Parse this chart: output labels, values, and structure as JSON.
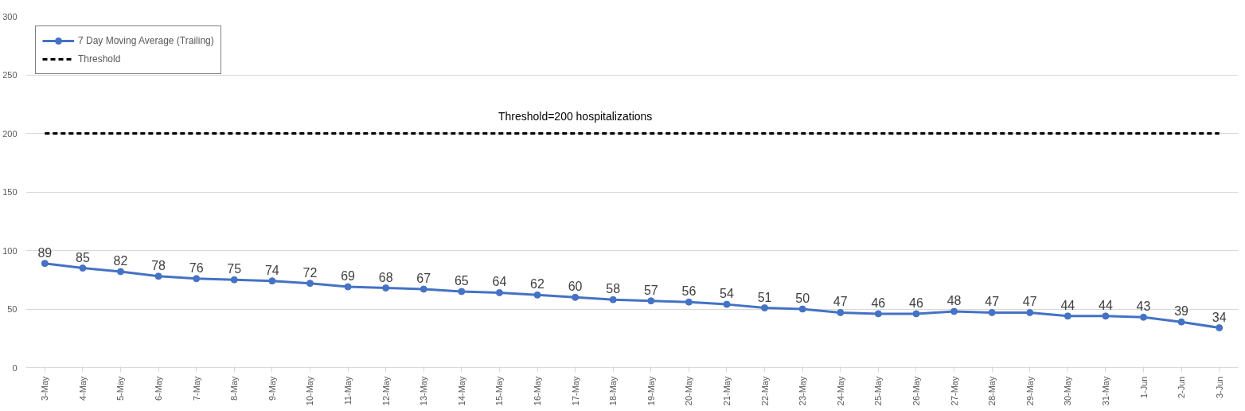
{
  "chart_data": {
    "type": "line",
    "categories": [
      "3-May",
      "4-May",
      "5-May",
      "6-May",
      "7-May",
      "8-May",
      "9-May",
      "10-May",
      "11-May",
      "12-May",
      "13-May",
      "14-May",
      "15-May",
      "16-May",
      "17-May",
      "18-May",
      "19-May",
      "20-May",
      "21-May",
      "22-May",
      "23-May",
      "24-May",
      "25-May",
      "26-May",
      "27-May",
      "28-May",
      "29-May",
      "30-May",
      "31-May",
      "1-Jun",
      "2-Jun",
      "3-Jun"
    ],
    "series": [
      {
        "name": "7 Day Moving Average (Trailing)",
        "color": "#4472c4",
        "marker": "circle",
        "line_style": "solid",
        "values": [
          89,
          85,
          82,
          78,
          76,
          75,
          74,
          72,
          69,
          68,
          67,
          65,
          64,
          62,
          60,
          58,
          57,
          56,
          54,
          51,
          50,
          47,
          46,
          46,
          48,
          47,
          47,
          44,
          44,
          43,
          39,
          34
        ],
        "value_labels": [
          "89",
          "85",
          "82",
          "78",
          "76",
          "75",
          "74",
          "72",
          "69",
          "68",
          "67",
          "65",
          "64",
          "62",
          "60",
          "58",
          "57",
          "56",
          "54",
          "51",
          "50",
          "47",
          "46",
          "46",
          "48",
          "47",
          "47",
          "44",
          "44",
          "43",
          "39",
          "34"
        ]
      },
      {
        "name": "Threshold",
        "color": "#000000",
        "marker": "none",
        "line_style": "dashed",
        "values": [
          200,
          200,
          200,
          200,
          200,
          200,
          200,
          200,
          200,
          200,
          200,
          200,
          200,
          200,
          200,
          200,
          200,
          200,
          200,
          200,
          200,
          200,
          200,
          200,
          200,
          200,
          200,
          200,
          200,
          200,
          200,
          200
        ]
      }
    ],
    "annotations": [
      {
        "text": "Threshold=200 hospitalizations",
        "x": "17-May",
        "y": 200
      }
    ],
    "ylim": [
      0,
      300
    ],
    "yticks": [
      0,
      50,
      100,
      150,
      200,
      250,
      300
    ],
    "grid": "y",
    "legend": "top left"
  }
}
